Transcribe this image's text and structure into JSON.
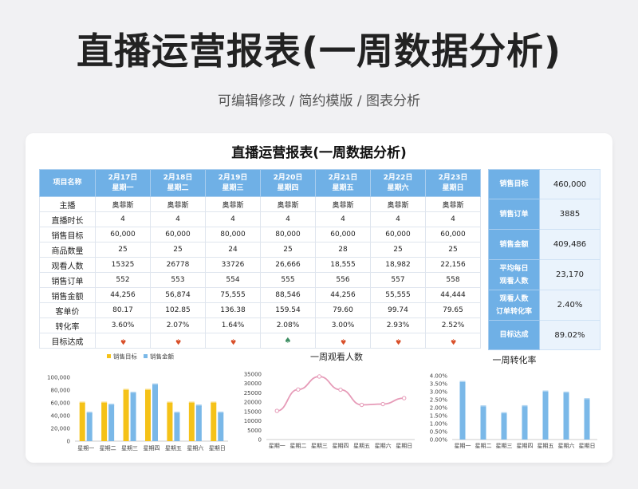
{
  "hero": {
    "title": "直播运营报表(一周数据分析)",
    "subtitle": "可编辑修改 / 简约模版 / 图表分析"
  },
  "card": {
    "title": "直播运营报表(一周数据分析)"
  },
  "table": {
    "header_label": "项目名称",
    "days": [
      {
        "date": "2月17日",
        "week": "星期一"
      },
      {
        "date": "2月18日",
        "week": "星期二"
      },
      {
        "date": "2月19日",
        "week": "星期三"
      },
      {
        "date": "2月20日",
        "week": "星期四"
      },
      {
        "date": "2月21日",
        "week": "星期五"
      },
      {
        "date": "2月22日",
        "week": "星期六"
      },
      {
        "date": "2月23日",
        "week": "星期日"
      }
    ],
    "rows": [
      {
        "label": "主播",
        "values": [
          "奥菲斯",
          "奥菲斯",
          "奥菲斯",
          "奥菲斯",
          "奥菲斯",
          "奥菲斯",
          "奥菲斯"
        ]
      },
      {
        "label": "直播时长",
        "values": [
          "4",
          "4",
          "4",
          "4",
          "4",
          "4",
          "4"
        ]
      },
      {
        "label": "销售目标",
        "values": [
          "60,000",
          "60,000",
          "80,000",
          "80,000",
          "60,000",
          "60,000",
          "60,000"
        ]
      },
      {
        "label": "商品数量",
        "values": [
          "25",
          "25",
          "24",
          "25",
          "28",
          "25",
          "25"
        ]
      },
      {
        "label": "观看人数",
        "values": [
          "15325",
          "26778",
          "33726",
          "26,666",
          "18,555",
          "18,982",
          "22,156"
        ]
      },
      {
        "label": "销售订单",
        "values": [
          "552",
          "553",
          "554",
          "555",
          "556",
          "557",
          "558"
        ]
      },
      {
        "label": "销售金额",
        "values": [
          "44,256",
          "56,874",
          "75,555",
          "88,546",
          "44,256",
          "55,555",
          "44,444"
        ]
      },
      {
        "label": "客单价",
        "values": [
          "80.17",
          "102.85",
          "136.38",
          "159.54",
          "79.60",
          "99.74",
          "79.65"
        ]
      },
      {
        "label": "转化率",
        "values": [
          "3.60%",
          "2.07%",
          "1.64%",
          "2.08%",
          "3.00%",
          "2.93%",
          "2.52%"
        ]
      }
    ],
    "target_row": {
      "label": "目标达成",
      "values": [
        {
          "glyph": "♠",
          "status": "down"
        },
        {
          "glyph": "♠",
          "status": "down"
        },
        {
          "glyph": "♠",
          "status": "down"
        },
        {
          "glyph": "♠",
          "status": "up"
        },
        {
          "glyph": "♠",
          "status": "down"
        },
        {
          "glyph": "♠",
          "status": "down"
        },
        {
          "glyph": "♠",
          "status": "down"
        }
      ]
    }
  },
  "summary": [
    {
      "label": "销售目标",
      "value": "460,000"
    },
    {
      "label": "销售订单",
      "value": "3885"
    },
    {
      "label": "销售金额",
      "value": "409,486"
    },
    {
      "label": "平均每日",
      "label2": "观看人数",
      "value": "23,170"
    },
    {
      "label": "观看人数",
      "label2": "订单转化率",
      "value": "2.40%"
    },
    {
      "label": "目标达成",
      "value": "89.02%"
    }
  ],
  "colors": {
    "header": "#6fb0e6",
    "gold": "#f5c218",
    "blue": "#7ab8e8",
    "pink": "#e69bb8",
    "up": "#3e8e63",
    "down": "#d9502a"
  },
  "chart_data": [
    {
      "type": "bar",
      "title": "",
      "categories": [
        "星期一",
        "星期二",
        "星期三",
        "星期四",
        "星期五",
        "星期六",
        "星期日"
      ],
      "series": [
        {
          "name": "销售目标",
          "values": [
            60000,
            60000,
            80000,
            80000,
            60000,
            60000,
            60000
          ]
        },
        {
          "name": "销售金额",
          "values": [
            44256,
            56874,
            75555,
            88546,
            44256,
            55555,
            44444
          ]
        }
      ],
      "ylim": [
        0,
        100000
      ],
      "yticks": [
        "100,000",
        "80,000",
        "60,000",
        "40,000",
        "20,000",
        "0"
      ],
      "legend": "top"
    },
    {
      "type": "line",
      "title": "一周观看人数",
      "categories": [
        "星期一",
        "星期二",
        "星期三",
        "星期四",
        "星期五",
        "星期六",
        "星期日"
      ],
      "series": [
        {
          "values": [
            15325,
            26778,
            33726,
            26666,
            18555,
            18982,
            22156
          ]
        }
      ],
      "ylim": [
        0,
        35000
      ],
      "yticks": [
        "35000",
        "30000",
        "25000",
        "20000",
        "15000",
        "10000",
        "5000",
        "0"
      ]
    },
    {
      "type": "bar",
      "title": "一周转化率",
      "categories": [
        "星期一",
        "星期二",
        "星期三",
        "星期四",
        "星期五",
        "星期六",
        "星期日"
      ],
      "series": [
        {
          "values": [
            3.6,
            2.07,
            1.64,
            2.08,
            3.0,
            2.93,
            2.52
          ]
        }
      ],
      "ylim": [
        0,
        4
      ],
      "yticks": [
        "4.00%",
        "3.50%",
        "3.00%",
        "2.50%",
        "2.00%",
        "1.50%",
        "1.00%",
        "0.50%",
        "0.00%"
      ]
    }
  ]
}
